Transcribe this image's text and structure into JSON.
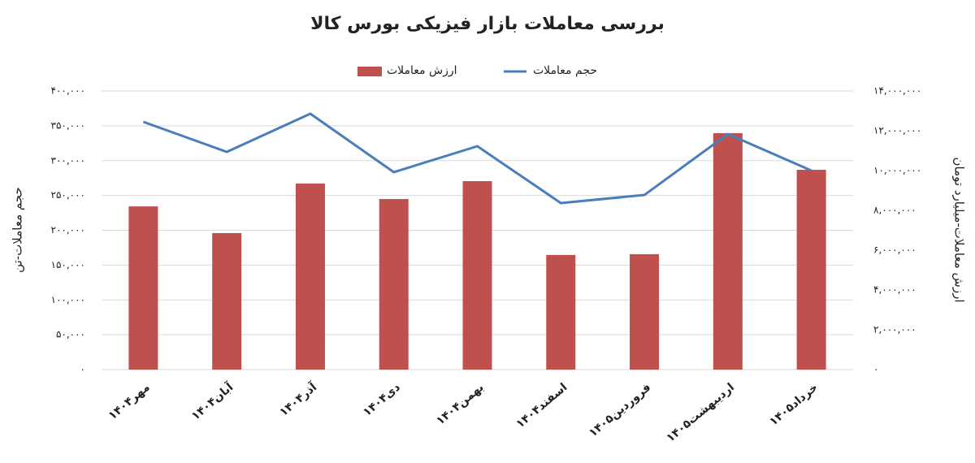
{
  "chart_data": {
    "type": "bar-line",
    "title": "بررسی معاملات بازار فیزیکی بورس کالا",
    "ylabel": "حجم معاملات-تن",
    "y2label": "ارزش معاملات-میلیارد تومان",
    "categories": [
      "مهر۱۴۰۴",
      "آبان۱۴۰۴",
      "آذر۱۴۰۴",
      "دی۱۴۰۴",
      "بهمن۱۴۰۴",
      "اسفند۱۴۰۴",
      "فروردین۱۴۰۵",
      "اردیبهشت۱۴۰۵",
      "خرداد۱۴۰۵"
    ],
    "series": [
      {
        "name": "حجم معاملات",
        "type": "line",
        "color": "#4a7ebb",
        "axis": "y",
        "values": [
          355700,
          312500,
          367300,
          283400,
          320700,
          239100,
          250700,
          338200,
          285700
        ]
      },
      {
        "name": "ارزش معاملات",
        "type": "bar",
        "color": "#c0504d",
        "axis": "y2",
        "values": [
          8200000,
          6860000,
          9350000,
          8570000,
          9470000,
          5760000,
          5800000,
          11880000,
          10040000
        ]
      }
    ],
    "ylim": [
      0,
      400000
    ],
    "yticks": [
      {
        "value": 0,
        "label": "۰"
      },
      {
        "value": 50000,
        "label": "۵۰,۰۰۰"
      },
      {
        "value": 100000,
        "label": "۱۰۰,۰۰۰"
      },
      {
        "value": 150000,
        "label": "۱۵۰,۰۰۰"
      },
      {
        "value": 200000,
        "label": "۲۰۰,۰۰۰"
      },
      {
        "value": 250000,
        "label": "۲۵۰,۰۰۰"
      },
      {
        "value": 300000,
        "label": "۳۰۰,۰۰۰"
      },
      {
        "value": 350000,
        "label": "۳۵۰,۰۰۰"
      },
      {
        "value": 400000,
        "label": "۴۰۰,۰۰۰"
      }
    ],
    "y2lim": [
      0,
      14000000
    ],
    "y2ticks": [
      {
        "value": 0,
        "label": "۰"
      },
      {
        "value": 2000000,
        "label": "۲,۰۰۰,۰۰۰"
      },
      {
        "value": 4000000,
        "label": "۴,۰۰۰,۰۰۰"
      },
      {
        "value": 6000000,
        "label": "۶,۰۰۰,۰۰۰"
      },
      {
        "value": 8000000,
        "label": "۸,۰۰۰,۰۰۰"
      },
      {
        "value": 10000000,
        "label": "۱۰,۰۰۰,۰۰۰"
      },
      {
        "value": 12000000,
        "label": "۱۲,۰۰۰,۰۰۰"
      },
      {
        "value": 14000000,
        "label": "۱۴,۰۰۰,۰۰۰"
      }
    ],
    "grid": true
  }
}
